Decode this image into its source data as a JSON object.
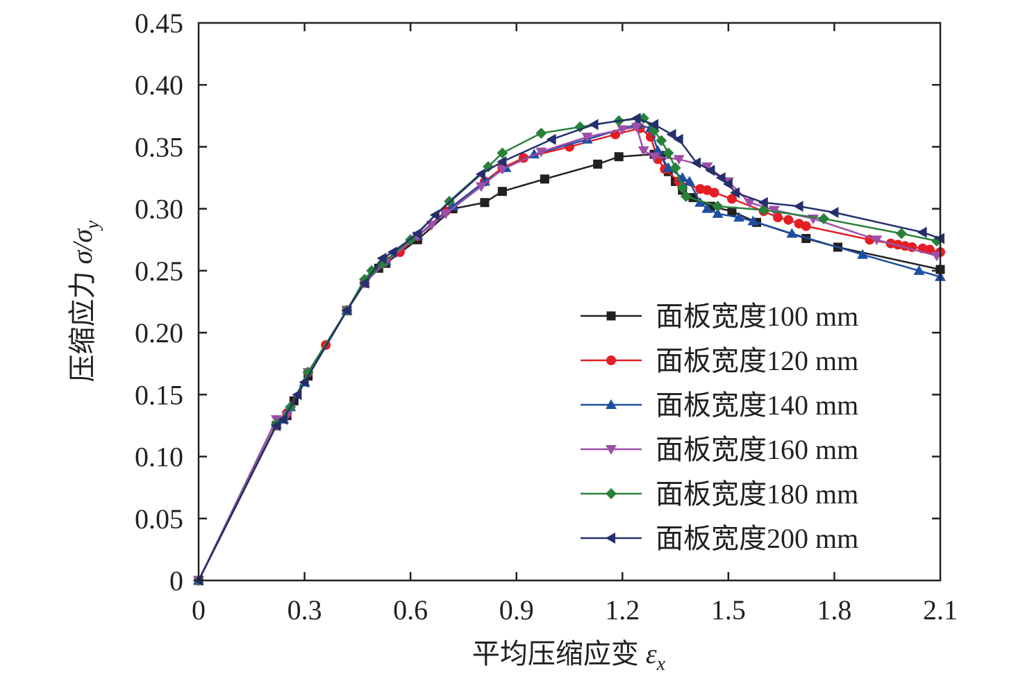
{
  "chart_data": {
    "type": "line",
    "title": "",
    "xlabel": {
      "text": "平均压缩应变",
      "symbol": "ε",
      "sub": "x"
    },
    "ylabel": {
      "text": "压缩应力",
      "symbol": "σ/σ",
      "sub": "y"
    },
    "xlim": [
      0,
      2.1
    ],
    "ylim": [
      0,
      0.45
    ],
    "xticks": [
      "0",
      "0.3",
      "0.6",
      "0.9",
      "1.2",
      "1.5",
      "1.8",
      "2.1"
    ],
    "yticks": [
      "0",
      "0.05",
      "0.10",
      "0.15",
      "0.20",
      "0.25",
      "0.30",
      "0.35",
      "0.40",
      "0.45"
    ],
    "grid": false,
    "legend_position": "lower-right",
    "series": [
      {
        "name": "面板宽度100 mm",
        "prefix": "面板宽度",
        "suffix": "100 mm",
        "color": "#231f20",
        "marker": "square",
        "points": [
          [
            0,
            0
          ],
          [
            0.22,
            0.125
          ],
          [
            0.25,
            0.133
          ],
          [
            0.27,
            0.145
          ],
          [
            0.31,
            0.165
          ],
          [
            0.42,
            0.218
          ],
          [
            0.47,
            0.24
          ],
          [
            0.51,
            0.252
          ],
          [
            0.53,
            0.256
          ],
          [
            0.62,
            0.275
          ],
          [
            0.72,
            0.3
          ],
          [
            0.81,
            0.305
          ],
          [
            0.86,
            0.314
          ],
          [
            0.98,
            0.324
          ],
          [
            1.13,
            0.336
          ],
          [
            1.19,
            0.342
          ],
          [
            1.29,
            0.344
          ],
          [
            1.31,
            0.343
          ],
          [
            1.33,
            0.33
          ],
          [
            1.35,
            0.322
          ],
          [
            1.37,
            0.315
          ],
          [
            1.4,
            0.309
          ],
          [
            1.45,
            0.302
          ],
          [
            1.51,
            0.298
          ],
          [
            1.58,
            0.289
          ],
          [
            1.72,
            0.276
          ],
          [
            1.81,
            0.269
          ],
          [
            2.1,
            0.251
          ]
        ]
      },
      {
        "name": "面板宽度120 mm",
        "prefix": "面板宽度",
        "suffix": "120 mm",
        "color": "#e31e24",
        "marker": "circle",
        "points": [
          [
            0,
            0
          ],
          [
            0.22,
            0.125
          ],
          [
            0.25,
            0.135
          ],
          [
            0.31,
            0.168
          ],
          [
            0.36,
            0.19
          ],
          [
            0.42,
            0.218
          ],
          [
            0.47,
            0.24
          ],
          [
            0.53,
            0.258
          ],
          [
            0.57,
            0.265
          ],
          [
            0.62,
            0.278
          ],
          [
            0.7,
            0.298
          ],
          [
            0.81,
            0.322
          ],
          [
            0.86,
            0.333
          ],
          [
            0.92,
            0.341
          ],
          [
            1.05,
            0.35
          ],
          [
            1.18,
            0.36
          ],
          [
            1.25,
            0.365
          ],
          [
            1.28,
            0.358
          ],
          [
            1.3,
            0.34
          ],
          [
            1.32,
            0.332
          ],
          [
            1.36,
            0.322
          ],
          [
            1.42,
            0.316
          ],
          [
            1.44,
            0.315
          ],
          [
            1.46,
            0.313
          ],
          [
            1.51,
            0.308
          ],
          [
            1.6,
            0.298
          ],
          [
            1.64,
            0.293
          ],
          [
            1.67,
            0.291
          ],
          [
            1.7,
            0.288
          ],
          [
            1.72,
            0.286
          ],
          [
            1.9,
            0.275
          ],
          [
            1.96,
            0.272
          ],
          [
            1.98,
            0.271
          ],
          [
            2.0,
            0.27
          ],
          [
            2.02,
            0.269
          ],
          [
            2.05,
            0.268
          ],
          [
            2.07,
            0.267
          ],
          [
            2.1,
            0.265
          ]
        ]
      },
      {
        "name": "面板宽度140 mm",
        "prefix": "面板宽度",
        "suffix": "140 mm",
        "color": "#1d4fa3",
        "marker": "triangle-up",
        "points": [
          [
            0,
            0
          ],
          [
            0.22,
            0.126
          ],
          [
            0.24,
            0.13
          ],
          [
            0.26,
            0.14
          ],
          [
            0.3,
            0.16
          ],
          [
            0.42,
            0.218
          ],
          [
            0.47,
            0.24
          ],
          [
            0.53,
            0.258
          ],
          [
            0.62,
            0.278
          ],
          [
            0.72,
            0.302
          ],
          [
            0.81,
            0.322
          ],
          [
            0.87,
            0.333
          ],
          [
            0.95,
            0.344
          ],
          [
            1.1,
            0.356
          ],
          [
            1.24,
            0.368
          ],
          [
            1.28,
            0.365
          ],
          [
            1.3,
            0.347
          ],
          [
            1.33,
            0.333
          ],
          [
            1.37,
            0.325
          ],
          [
            1.39,
            0.322
          ],
          [
            1.42,
            0.305
          ],
          [
            1.44,
            0.3
          ],
          [
            1.47,
            0.296
          ],
          [
            1.53,
            0.293
          ],
          [
            1.57,
            0.29
          ],
          [
            1.68,
            0.28
          ],
          [
            1.88,
            0.263
          ],
          [
            2.04,
            0.25
          ],
          [
            2.1,
            0.245
          ]
        ]
      },
      {
        "name": "面板宽度160 mm",
        "prefix": "面板宽度",
        "suffix": "160 mm",
        "color": "#9e4fa8",
        "marker": "triangle-down",
        "points": [
          [
            0,
            0
          ],
          [
            0.22,
            0.13
          ],
          [
            0.25,
            0.133
          ],
          [
            0.31,
            0.168
          ],
          [
            0.42,
            0.218
          ],
          [
            0.47,
            0.24
          ],
          [
            0.53,
            0.257
          ],
          [
            0.62,
            0.278
          ],
          [
            0.66,
            0.287
          ],
          [
            0.7,
            0.296
          ],
          [
            0.8,
            0.318
          ],
          [
            0.86,
            0.332
          ],
          [
            0.97,
            0.346
          ],
          [
            1.1,
            0.358
          ],
          [
            1.2,
            0.364
          ],
          [
            1.24,
            0.366
          ],
          [
            1.26,
            0.347
          ],
          [
            1.29,
            0.342
          ],
          [
            1.36,
            0.34
          ],
          [
            1.44,
            0.334
          ],
          [
            1.5,
            0.322
          ],
          [
            1.56,
            0.305
          ],
          [
            1.63,
            0.299
          ],
          [
            1.74,
            0.292
          ],
          [
            1.92,
            0.275
          ],
          [
            2.09,
            0.262
          ]
        ]
      },
      {
        "name": "面板宽度180 mm",
        "prefix": "面板宽度",
        "suffix": "180 mm",
        "color": "#28813a",
        "marker": "diamond",
        "points": [
          [
            0,
            0
          ],
          [
            0.22,
            0.126
          ],
          [
            0.26,
            0.14
          ],
          [
            0.31,
            0.168
          ],
          [
            0.42,
            0.218
          ],
          [
            0.47,
            0.243
          ],
          [
            0.49,
            0.25
          ],
          [
            0.52,
            0.256
          ],
          [
            0.6,
            0.275
          ],
          [
            0.71,
            0.306
          ],
          [
            0.82,
            0.334
          ],
          [
            0.86,
            0.345
          ],
          [
            0.97,
            0.361
          ],
          [
            1.08,
            0.366
          ],
          [
            1.19,
            0.371
          ],
          [
            1.26,
            0.373
          ],
          [
            1.29,
            0.363
          ],
          [
            1.31,
            0.355
          ],
          [
            1.33,
            0.345
          ],
          [
            1.35,
            0.333
          ],
          [
            1.37,
            0.317
          ],
          [
            1.38,
            0.31
          ],
          [
            1.47,
            0.302
          ],
          [
            1.6,
            0.299
          ],
          [
            1.77,
            0.292
          ],
          [
            1.99,
            0.28
          ],
          [
            2.09,
            0.274
          ]
        ]
      },
      {
        "name": "面板宽度200 mm",
        "prefix": "面板宽度",
        "suffix": "200 mm",
        "color": "#252f6c",
        "marker": "triangle-left",
        "points": [
          [
            0,
            0
          ],
          [
            0.22,
            0.125
          ],
          [
            0.24,
            0.13
          ],
          [
            0.28,
            0.15
          ],
          [
            0.3,
            0.16
          ],
          [
            0.42,
            0.218
          ],
          [
            0.47,
            0.24
          ],
          [
            0.52,
            0.26
          ],
          [
            0.55,
            0.265
          ],
          [
            0.62,
            0.28
          ],
          [
            0.67,
            0.295
          ],
          [
            0.8,
            0.328
          ],
          [
            0.86,
            0.338
          ],
          [
            1.0,
            0.356
          ],
          [
            1.12,
            0.368
          ],
          [
            1.24,
            0.373
          ],
          [
            1.29,
            0.368
          ],
          [
            1.34,
            0.36
          ],
          [
            1.36,
            0.356
          ],
          [
            1.41,
            0.337
          ],
          [
            1.45,
            0.331
          ],
          [
            1.48,
            0.325
          ],
          [
            1.5,
            0.32
          ],
          [
            1.52,
            0.313
          ],
          [
            1.6,
            0.305
          ],
          [
            1.7,
            0.302
          ],
          [
            1.8,
            0.297
          ],
          [
            2.05,
            0.281
          ],
          [
            2.1,
            0.276
          ]
        ]
      }
    ]
  }
}
